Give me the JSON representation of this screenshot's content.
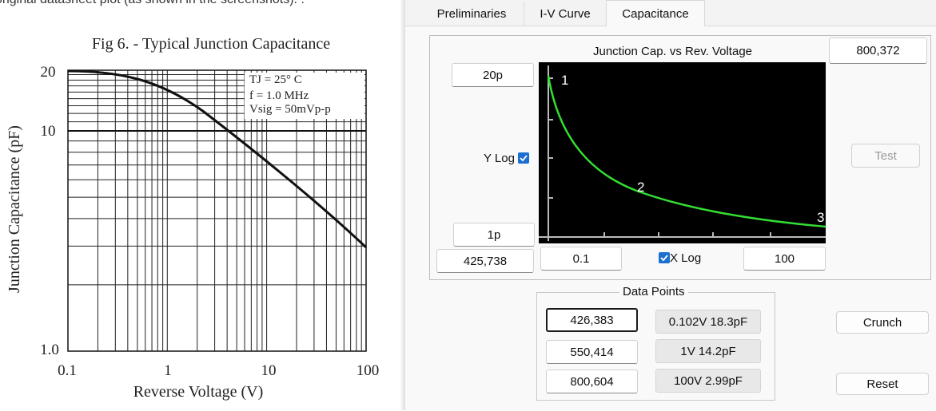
{
  "document_text": {
    "caption": "original datasheet plot (as shown in the screenshots). :"
  },
  "datasheet_figure": {
    "title": "Fig 6.  -  Typical Junction Capacitance",
    "conditions": [
      "TJ = 25° C",
      "f = 1.0 MHz",
      "Vsig = 50mVp-p"
    ],
    "y_axis_label": "Junction Capacitance (pF)",
    "x_axis_label": "Reverse Voltage (V)",
    "y_tick_labels": [
      "20",
      "10",
      "1.0"
    ],
    "x_tick_labels": [
      "0.1",
      "1",
      "10",
      "100"
    ]
  },
  "tabs": [
    "Preliminaries",
    "I-V Curve",
    "Capacitance"
  ],
  "plot_panel": {
    "title": "Junction Cap. vs Rev. Voltage",
    "cursor_position": "800,372",
    "y_max": "20p",
    "y_min": "1p",
    "y_log_label": "Y Log",
    "x_min": "0.1",
    "x_max": "100",
    "x_log_label": "X Log",
    "mouse_position": "425,738",
    "test_button": "Test",
    "point_labels": [
      "1",
      "2",
      "3"
    ]
  },
  "data_points": {
    "title": "Data Points",
    "rows": [
      {
        "position": "426,383",
        "value": "0.102V 18.3pF"
      },
      {
        "position": "550,414",
        "value": "1V 14.2pF"
      },
      {
        "position": "800,604",
        "value": "100V 2.99pF"
      }
    ]
  },
  "buttons": {
    "crunch": "Crunch",
    "reset": "Reset"
  }
}
